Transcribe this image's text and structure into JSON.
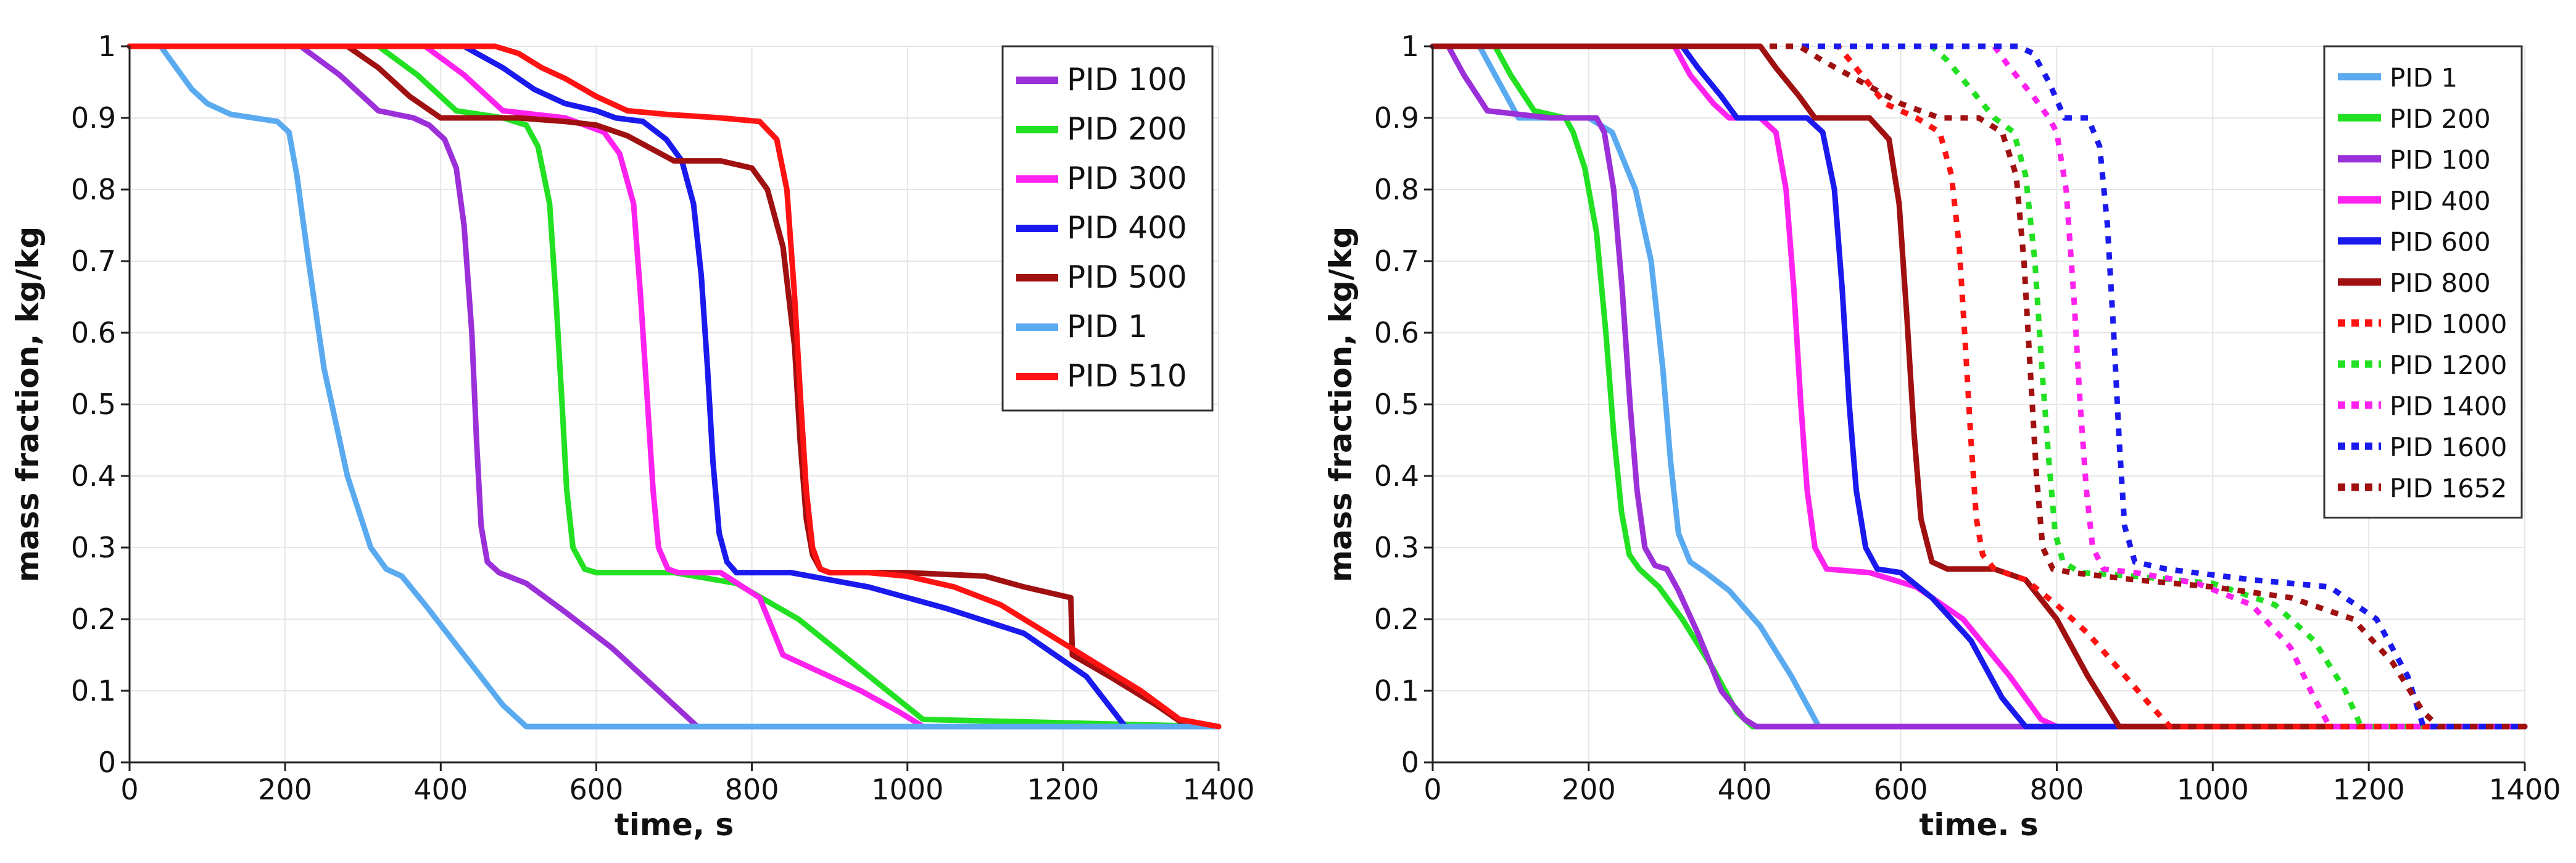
{
  "chart_data": [
    {
      "type": "line",
      "xlabel": "time, s",
      "ylabel": "mass fraction, kg/kg",
      "xlim": [
        0,
        1400
      ],
      "ylim": [
        0,
        1
      ],
      "grid": true,
      "legend_position": "top-right",
      "x_ticks": [
        "0",
        "200",
        "400",
        "600",
        "800",
        "1000",
        "1200",
        "1400"
      ],
      "y_ticks": [
        "0",
        "0.1",
        "0.2",
        "0.3",
        "0.4",
        "0.5",
        "0.6",
        "0.7",
        "0.8",
        "0.9",
        "1"
      ],
      "series": [
        {
          "name": "PID 100",
          "color": "#9b30d9",
          "style": "solid",
          "x": [
            0,
            220,
            270,
            320,
            365,
            385,
            405,
            420,
            430,
            440,
            446,
            452,
            460,
            475,
            510,
            560,
            620,
            680,
            730,
            1400
          ],
          "y": [
            1,
            1,
            0.96,
            0.91,
            0.9,
            0.89,
            0.87,
            0.83,
            0.75,
            0.6,
            0.45,
            0.33,
            0.28,
            0.265,
            0.25,
            0.21,
            0.16,
            0.1,
            0.05,
            0.05
          ]
        },
        {
          "name": "PID 200",
          "color": "#22e022",
          "style": "solid",
          "x": [
            0,
            320,
            370,
            420,
            480,
            510,
            525,
            540,
            548,
            556,
            562,
            570,
            585,
            600,
            700,
            780,
            860,
            940,
            1020,
            1400
          ],
          "y": [
            1,
            1,
            0.96,
            0.91,
            0.9,
            0.89,
            0.86,
            0.78,
            0.65,
            0.5,
            0.38,
            0.3,
            0.27,
            0.265,
            0.265,
            0.25,
            0.2,
            0.13,
            0.06,
            0.05
          ]
        },
        {
          "name": "PID 300",
          "color": "#ff22ee",
          "style": "solid",
          "x": [
            0,
            380,
            430,
            480,
            560,
            610,
            630,
            648,
            657,
            666,
            673,
            680,
            692,
            705,
            760,
            810,
            840,
            880,
            940,
            990,
            1020,
            1400
          ],
          "y": [
            1,
            1,
            0.96,
            0.91,
            0.9,
            0.88,
            0.85,
            0.78,
            0.65,
            0.5,
            0.38,
            0.3,
            0.27,
            0.265,
            0.265,
            0.23,
            0.15,
            0.13,
            0.1,
            0.07,
            0.05,
            0.05
          ]
        },
        {
          "name": "PID 400",
          "color": "#1a1aee",
          "style": "solid",
          "x": [
            0,
            430,
            480,
            520,
            560,
            600,
            625,
            660,
            690,
            710,
            725,
            735,
            743,
            750,
            758,
            768,
            780,
            850,
            950,
            1050,
            1150,
            1230,
            1280,
            1400
          ],
          "y": [
            1,
            1,
            0.97,
            0.94,
            0.92,
            0.91,
            0.9,
            0.895,
            0.87,
            0.84,
            0.78,
            0.68,
            0.55,
            0.42,
            0.32,
            0.28,
            0.265,
            0.265,
            0.245,
            0.215,
            0.18,
            0.12,
            0.05,
            0.05
          ]
        },
        {
          "name": "PID 500",
          "color": "#a01010",
          "style": "solid",
          "x": [
            0,
            280,
            320,
            360,
            400,
            500,
            560,
            600,
            640,
            700,
            760,
            800,
            820,
            840,
            855,
            862,
            870,
            878,
            888,
            900,
            1000,
            1100,
            1150,
            1210,
            1212,
            1260,
            1320,
            1360,
            1400
          ],
          "y": [
            1,
            1,
            0.97,
            0.93,
            0.9,
            0.9,
            0.895,
            0.89,
            0.875,
            0.84,
            0.84,
            0.83,
            0.8,
            0.72,
            0.58,
            0.45,
            0.34,
            0.29,
            0.27,
            0.265,
            0.265,
            0.26,
            0.245,
            0.23,
            0.15,
            0.12,
            0.08,
            0.05,
            0.05
          ]
        },
        {
          "name": "PID 1",
          "color": "#5aaaf0",
          "style": "solid",
          "x": [
            0,
            40,
            60,
            80,
            100,
            130,
            160,
            190,
            205,
            215,
            230,
            250,
            280,
            310,
            330,
            350,
            380,
            430,
            480,
            510,
            1400
          ],
          "y": [
            1,
            1,
            0.97,
            0.94,
            0.92,
            0.905,
            0.9,
            0.895,
            0.88,
            0.82,
            0.7,
            0.55,
            0.4,
            0.3,
            0.27,
            0.26,
            0.22,
            0.15,
            0.08,
            0.05,
            0.05
          ]
        },
        {
          "name": "PID 510",
          "color": "#ff1212",
          "style": "solid",
          "x": [
            0,
            470,
            500,
            530,
            560,
            600,
            640,
            690,
            760,
            810,
            832,
            845,
            855,
            863,
            870,
            878,
            888,
            900,
            950,
            1000,
            1060,
            1120,
            1180,
            1240,
            1300,
            1350,
            1400
          ],
          "y": [
            1,
            1,
            0.99,
            0.97,
            0.955,
            0.93,
            0.91,
            0.905,
            0.9,
            0.895,
            0.87,
            0.8,
            0.65,
            0.5,
            0.38,
            0.3,
            0.27,
            0.265,
            0.265,
            0.26,
            0.245,
            0.22,
            0.18,
            0.14,
            0.1,
            0.06,
            0.05
          ]
        }
      ]
    },
    {
      "type": "line",
      "xlabel": "time. s",
      "ylabel": "mass fraction, kg/kg",
      "xlim": [
        0,
        1400
      ],
      "ylim": [
        0,
        1
      ],
      "grid": true,
      "legend_position": "top-right",
      "x_ticks": [
        "0",
        "200",
        "400",
        "600",
        "800",
        "1000",
        "1200",
        "1400"
      ],
      "y_ticks": [
        "0",
        "0.1",
        "0.2",
        "0.3",
        "0.4",
        "0.5",
        "0.6",
        "0.7",
        "0.8",
        "0.9",
        "1"
      ],
      "series": [
        {
          "name": "PID 1",
          "color": "#5aaaf0",
          "style": "solid",
          "x": [
            0,
            60,
            80,
            110,
            200,
            230,
            260,
            280,
            295,
            305,
            315,
            330,
            350,
            380,
            420,
            460,
            495,
            1400
          ],
          "y": [
            1,
            1,
            0.96,
            0.9,
            0.9,
            0.88,
            0.8,
            0.7,
            0.55,
            0.42,
            0.32,
            0.28,
            0.265,
            0.24,
            0.19,
            0.12,
            0.05,
            0.05
          ]
        },
        {
          "name": "PID 200",
          "color": "#22e022",
          "style": "solid",
          "x": [
            0,
            80,
            100,
            130,
            170,
            180,
            195,
            210,
            222,
            232,
            242,
            252,
            265,
            290,
            320,
            360,
            390,
            410,
            1400
          ],
          "y": [
            1,
            1,
            0.96,
            0.91,
            0.9,
            0.88,
            0.83,
            0.74,
            0.6,
            0.46,
            0.35,
            0.29,
            0.27,
            0.245,
            0.2,
            0.13,
            0.07,
            0.05,
            0.05
          ]
        },
        {
          "name": "PID 100",
          "color": "#9b30d9",
          "style": "solid",
          "x": [
            0,
            20,
            40,
            70,
            150,
            210,
            220,
            232,
            243,
            253,
            262,
            272,
            285,
            300,
            315,
            340,
            370,
            400,
            415,
            1400
          ],
          "y": [
            1,
            1,
            0.96,
            0.91,
            0.9,
            0.9,
            0.88,
            0.8,
            0.66,
            0.5,
            0.38,
            0.3,
            0.275,
            0.27,
            0.24,
            0.18,
            0.1,
            0.06,
            0.05,
            0.05
          ]
        },
        {
          "name": "PID 400",
          "color": "#ff22ee",
          "style": "solid",
          "x": [
            0,
            310,
            330,
            360,
            380,
            420,
            440,
            453,
            463,
            472,
            480,
            490,
            505,
            560,
            620,
            680,
            740,
            780,
            800,
            1400
          ],
          "y": [
            1,
            1,
            0.96,
            0.92,
            0.9,
            0.9,
            0.88,
            0.8,
            0.66,
            0.5,
            0.38,
            0.3,
            0.27,
            0.265,
            0.245,
            0.2,
            0.12,
            0.06,
            0.05,
            0.05
          ]
        },
        {
          "name": "PID 600",
          "color": "#1a1aee",
          "style": "solid",
          "x": [
            0,
            320,
            340,
            370,
            390,
            480,
            500,
            515,
            525,
            534,
            543,
            555,
            570,
            600,
            640,
            690,
            730,
            760,
            1400
          ],
          "y": [
            1,
            1,
            0.97,
            0.93,
            0.9,
            0.9,
            0.88,
            0.8,
            0.66,
            0.5,
            0.38,
            0.3,
            0.27,
            0.265,
            0.23,
            0.17,
            0.09,
            0.05,
            0.05
          ]
        },
        {
          "name": "PID 800",
          "color": "#a01010",
          "style": "solid",
          "x": [
            0,
            420,
            440,
            470,
            490,
            560,
            585,
            598,
            608,
            617,
            626,
            640,
            660,
            720,
            760,
            800,
            840,
            880,
            1400
          ],
          "y": [
            1,
            1,
            0.97,
            0.93,
            0.9,
            0.9,
            0.87,
            0.78,
            0.62,
            0.46,
            0.34,
            0.28,
            0.27,
            0.27,
            0.255,
            0.2,
            0.12,
            0.05,
            0.05
          ]
        },
        {
          "name": "PID 1000",
          "color": "#ff1212",
          "style": "dotted",
          "x": [
            0,
            520,
            550,
            580,
            620,
            650,
            665,
            675,
            683,
            690,
            697,
            705,
            720,
            760,
            800,
            840,
            880,
            920,
            945,
            1400
          ],
          "y": [
            1,
            1,
            0.96,
            0.92,
            0.9,
            0.88,
            0.82,
            0.72,
            0.58,
            0.45,
            0.34,
            0.29,
            0.27,
            0.255,
            0.22,
            0.18,
            0.13,
            0.08,
            0.05,
            0.05
          ]
        },
        {
          "name": "PID 1200",
          "color": "#22e022",
          "style": "dotted",
          "x": [
            0,
            640,
            660,
            690,
            720,
            745,
            760,
            772,
            781,
            790,
            798,
            808,
            830,
            900,
            1000,
            1080,
            1130,
            1170,
            1190,
            1400
          ],
          "y": [
            1,
            1,
            0.98,
            0.94,
            0.9,
            0.88,
            0.82,
            0.7,
            0.55,
            0.42,
            0.32,
            0.28,
            0.265,
            0.26,
            0.25,
            0.22,
            0.17,
            0.1,
            0.05,
            0.05
          ]
        },
        {
          "name": "PID 1400",
          "color": "#ff22ee",
          "style": "dotted",
          "x": [
            0,
            720,
            740,
            770,
            790,
            800,
            812,
            822,
            830,
            838,
            846,
            860,
            900,
            980,
            1050,
            1100,
            1130,
            1150,
            1400
          ],
          "y": [
            1,
            1,
            0.97,
            0.93,
            0.9,
            0.88,
            0.8,
            0.65,
            0.5,
            0.38,
            0.3,
            0.27,
            0.265,
            0.25,
            0.22,
            0.16,
            0.09,
            0.05,
            0.05
          ]
        },
        {
          "name": "PID 1600",
          "color": "#1a1aee",
          "style": "dotted",
          "x": [
            0,
            750,
            770,
            790,
            810,
            840,
            855,
            865,
            873,
            880,
            887,
            900,
            940,
            1050,
            1150,
            1210,
            1250,
            1270,
            1400
          ],
          "y": [
            1,
            1,
            0.99,
            0.95,
            0.9,
            0.9,
            0.86,
            0.75,
            0.6,
            0.45,
            0.33,
            0.28,
            0.27,
            0.255,
            0.245,
            0.2,
            0.12,
            0.05,
            0.05
          ]
        },
        {
          "name": "PID 1652",
          "color": "#a01010",
          "style": "dotted",
          "x": [
            0,
            470,
            500,
            550,
            600,
            650,
            700,
            730,
            748,
            758,
            766,
            774,
            782,
            795,
            820,
            900,
            1000,
            1100,
            1180,
            1230,
            1270,
            1290,
            1400
          ],
          "y": [
            1,
            1,
            0.98,
            0.95,
            0.92,
            0.9,
            0.9,
            0.88,
            0.82,
            0.7,
            0.55,
            0.4,
            0.3,
            0.27,
            0.265,
            0.255,
            0.245,
            0.23,
            0.2,
            0.14,
            0.07,
            0.05,
            0.05
          ]
        }
      ]
    }
  ]
}
